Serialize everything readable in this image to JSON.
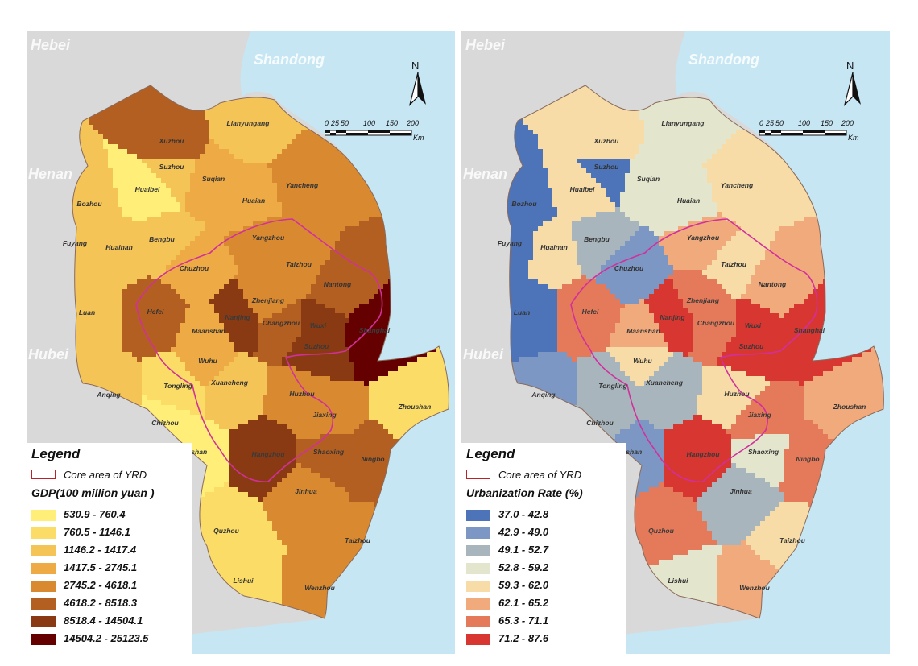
{
  "caption": "",
  "maps": [
    {
      "id": "left",
      "legend_title": "Legend",
      "core_label": "Core area of YRD",
      "field_label": "GDP(100 million yuan )",
      "classes": [
        {
          "label": "530.9 - 760.4",
          "color": "#ffef78"
        },
        {
          "label": "760.5 - 1146.1",
          "color": "#fadc66"
        },
        {
          "label": "1146.2 - 1417.4",
          "color": "#f5c457"
        },
        {
          "label": "1417.5 - 2745.1",
          "color": "#eeaa44"
        },
        {
          "label": "2745.2 - 4618.1",
          "color": "#d98a31"
        },
        {
          "label": "4618.2 - 8518.3",
          "color": "#b45f22"
        },
        {
          "label": "8518.4 - 14504.1",
          "color": "#8a3a12"
        },
        {
          "label": "14504.2 - 25123.5",
          "color": "#650000"
        }
      ]
    },
    {
      "id": "right",
      "legend_title": "Legend",
      "core_label": "Core area of YRD",
      "field_label": "Urbanization Rate (%)",
      "classes": [
        {
          "label": "37.0 - 42.8",
          "color": "#4d74b8"
        },
        {
          "label": "42.9 - 49.0",
          "color": "#7c97c3"
        },
        {
          "label": "49.1 - 52.7",
          "color": "#a9b5bd"
        },
        {
          "label": "52.8 - 59.2",
          "color": "#e3e6cc"
        },
        {
          "label": "59.3 - 62.0",
          "color": "#f7dca8"
        },
        {
          "label": "62.1 - 65.2",
          "color": "#f0aa7c"
        },
        {
          "label": "65.3 - 71.1",
          "color": "#e57a5a"
        },
        {
          "label": "71.2 - 87.6",
          "color": "#d83631"
        }
      ]
    }
  ],
  "provinces": [
    "Hebei",
    "Shandong",
    "Henan",
    "Hubei"
  ],
  "north_label": "N",
  "scale": {
    "ticks": [
      "0",
      "25",
      "50",
      "100",
      "150",
      "200"
    ],
    "unit": "Km"
  },
  "cities": [
    {
      "name": "Lianyungang",
      "gdp": 2,
      "urb": 3
    },
    {
      "name": "Xuzhou",
      "gdp": 5,
      "urb": 4
    },
    {
      "name": "Suzhou",
      "gdp": 2,
      "urb": 0
    },
    {
      "name": "Huaibei",
      "gdp": 0,
      "urb": 4
    },
    {
      "name": "Suqian",
      "gdp": 3,
      "urb": 3
    },
    {
      "name": "Huaian",
      "gdp": 3,
      "urb": 3
    },
    {
      "name": "Yancheng",
      "gdp": 4,
      "urb": 4
    },
    {
      "name": "Bozhou",
      "gdp": 2,
      "urb": 0
    },
    {
      "name": "Bengbu",
      "gdp": 2,
      "urb": 2
    },
    {
      "name": "Fuyang",
      "gdp": 2,
      "urb": 0
    },
    {
      "name": "Huainan",
      "gdp": 2,
      "urb": 4
    },
    {
      "name": "Chuzhou",
      "gdp": 3,
      "urb": 1
    },
    {
      "name": "Yangzhou",
      "gdp": 4,
      "urb": 5
    },
    {
      "name": "Taizhou",
      "gdp": 4,
      "urb": 4
    },
    {
      "name": "Nantong",
      "gdp": 5,
      "urb": 5
    },
    {
      "name": "Luan",
      "gdp": 2,
      "urb": 0
    },
    {
      "name": "Hefei",
      "gdp": 5,
      "urb": 6
    },
    {
      "name": "Zhenjiang",
      "gdp": 4,
      "urb": 6
    },
    {
      "name": "Nanjing",
      "gdp": 6,
      "urb": 7
    },
    {
      "name": "Changzhou",
      "gdp": 5,
      "urb": 6
    },
    {
      "name": "Wuxi",
      "gdp": 6,
      "urb": 7
    },
    {
      "name": "Suzhou",
      "gdp": 6,
      "urb": 7
    },
    {
      "name": "Shanghai",
      "gdp": 7,
      "urb": 7
    },
    {
      "name": "Maanshan",
      "gdp": 3,
      "urb": 5
    },
    {
      "name": "Wuhu",
      "gdp": 3,
      "urb": 4
    },
    {
      "name": "Tongling",
      "gdp": 1,
      "urb": 2
    },
    {
      "name": "Xuancheng",
      "gdp": 2,
      "urb": 2
    },
    {
      "name": "Huzhou",
      "gdp": 4,
      "urb": 4
    },
    {
      "name": "Jiaxing",
      "gdp": 4,
      "urb": 6
    },
    {
      "name": "Zhoushan",
      "gdp": 1,
      "urb": 5
    },
    {
      "name": "Anqing",
      "gdp": 2,
      "urb": 1
    },
    {
      "name": "Chizhou",
      "gdp": 0,
      "urb": 2
    },
    {
      "name": "Huangshan",
      "gdp": 0,
      "urb": 1
    },
    {
      "name": "Hangzhou",
      "gdp": 6,
      "urb": 7
    },
    {
      "name": "Shaoxing",
      "gdp": 5,
      "urb": 3
    },
    {
      "name": "Ningbo",
      "gdp": 5,
      "urb": 6
    },
    {
      "name": "Jinhua",
      "gdp": 4,
      "urb": 2
    },
    {
      "name": "Quzhou",
      "gdp": 1,
      "urb": 6
    },
    {
      "name": "Taizhou",
      "gdp": 4,
      "urb": 4
    },
    {
      "name": "Lishui",
      "gdp": 1,
      "urb": 3
    },
    {
      "name": "Wenzhou",
      "gdp": 4,
      "urb": 5
    }
  ]
}
